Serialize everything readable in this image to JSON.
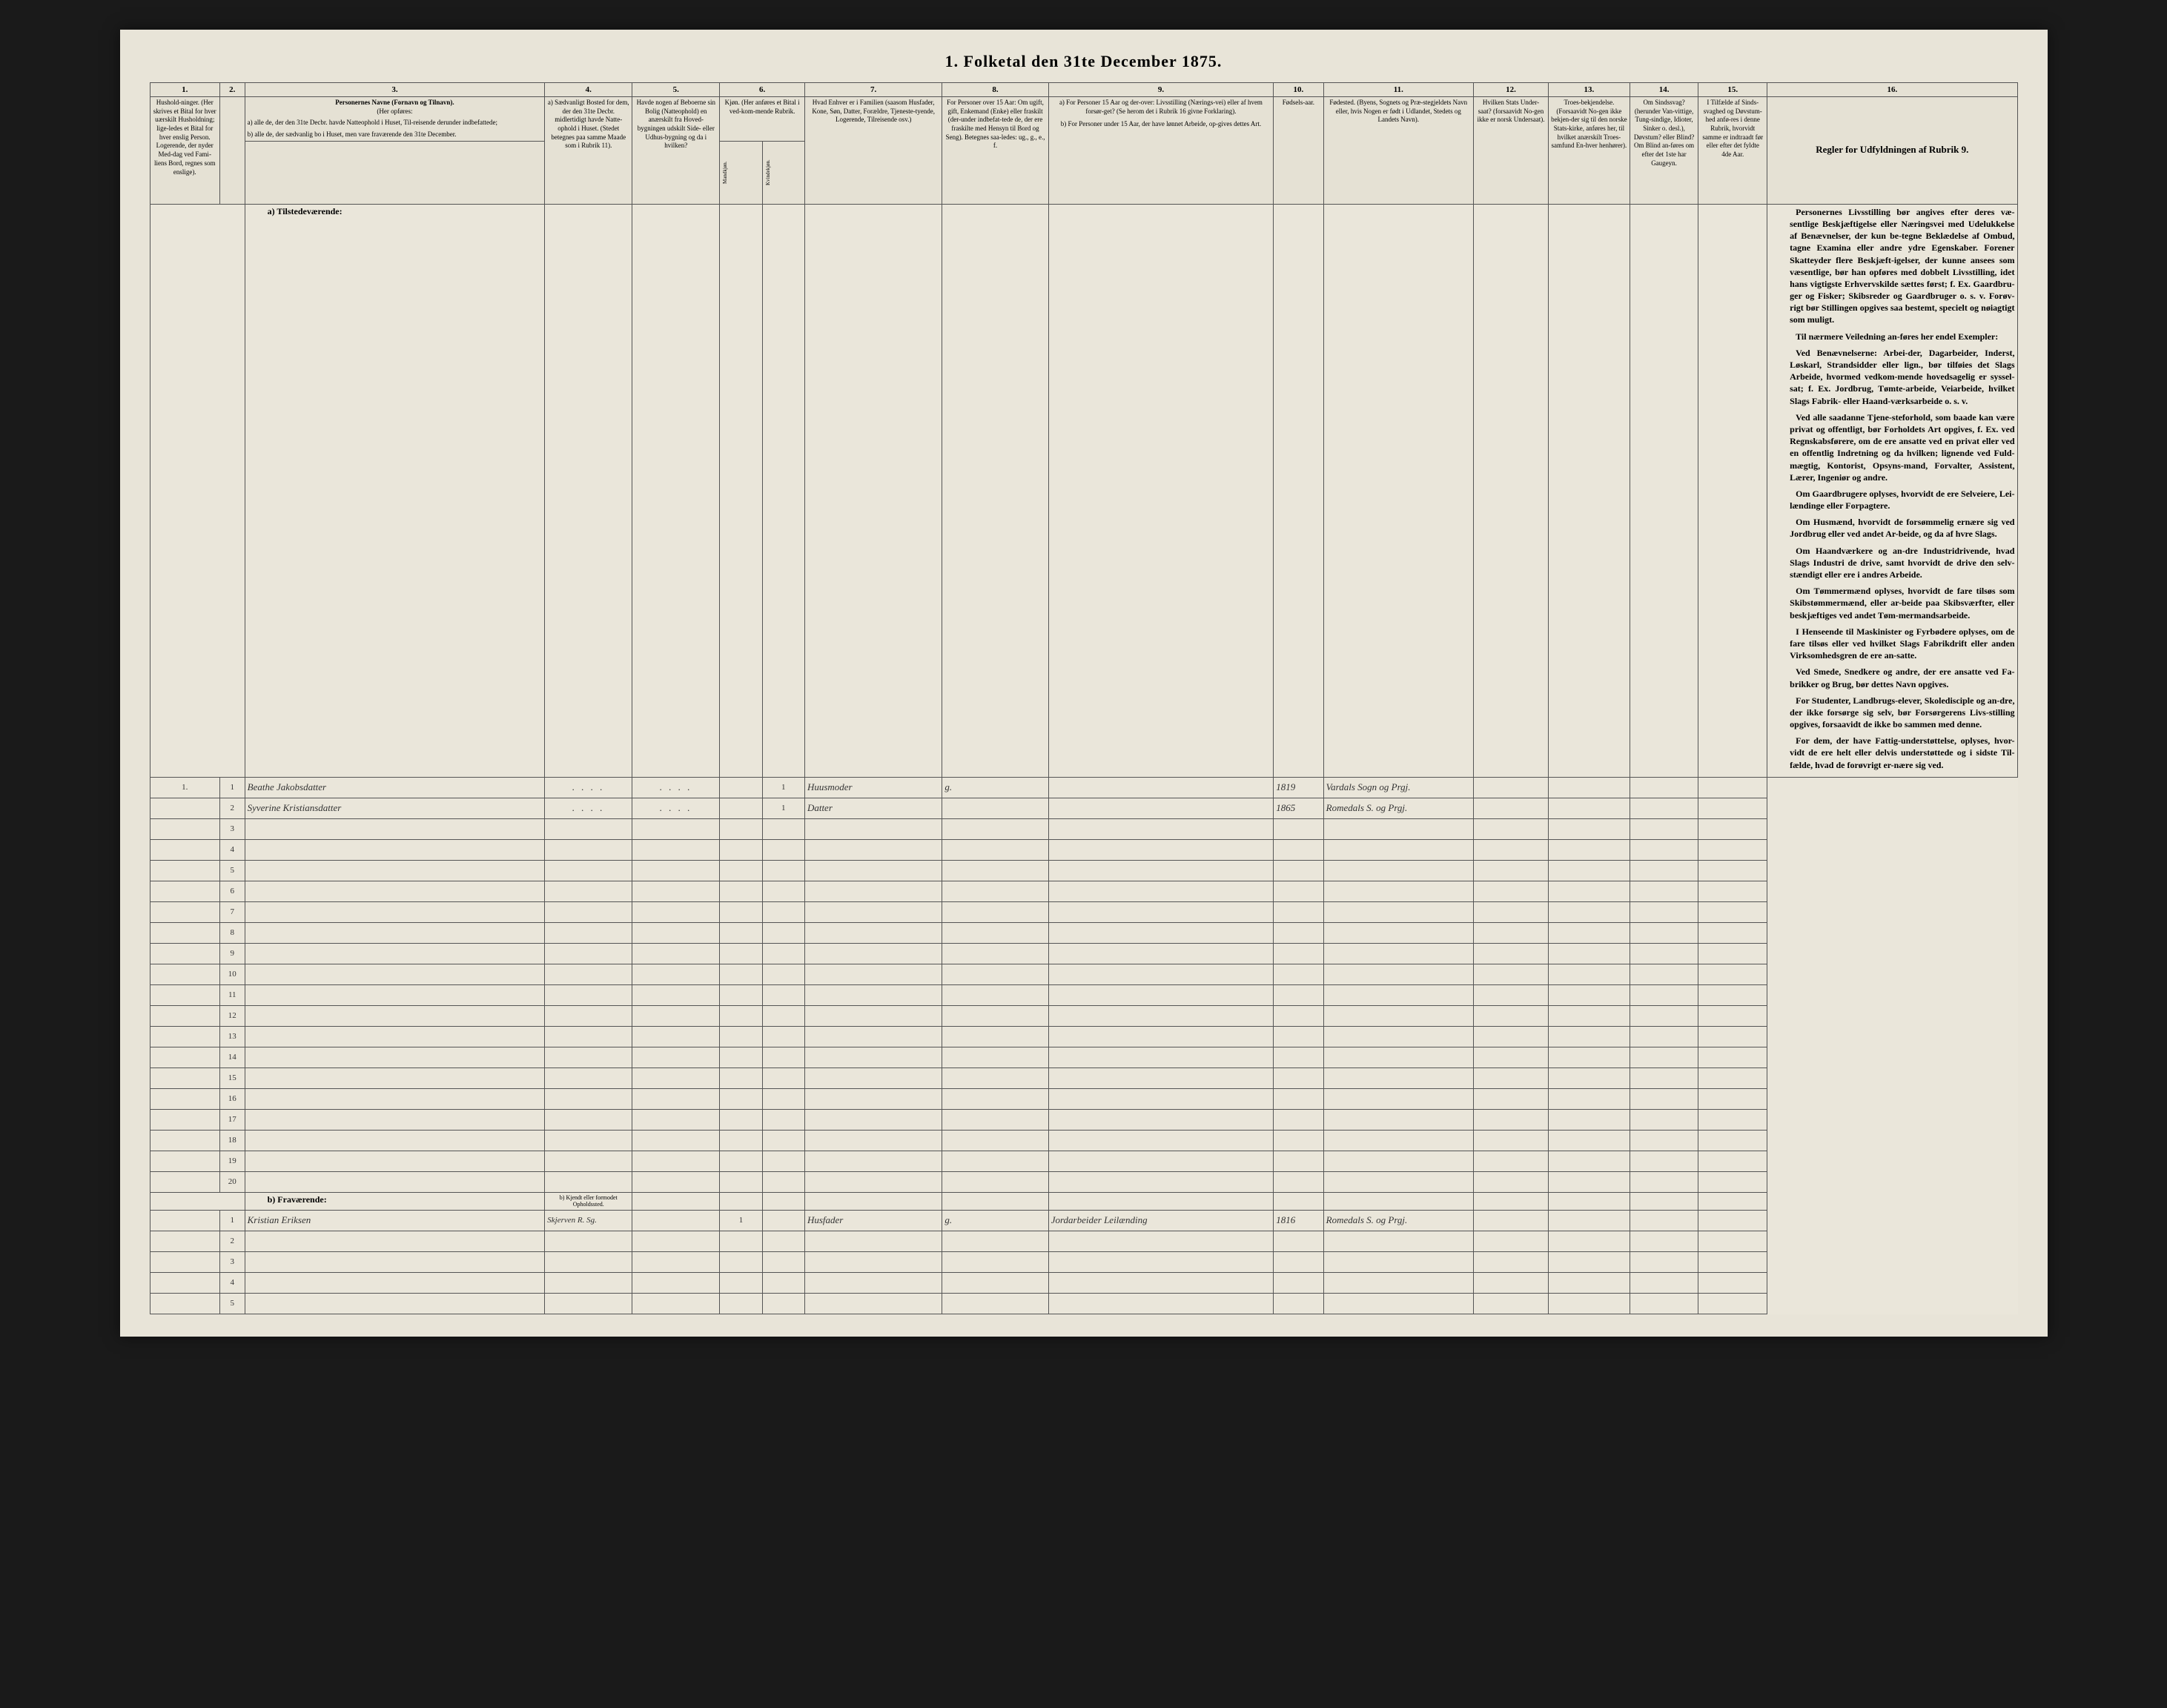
{
  "title": "1. Folketal den 31te December 1875.",
  "columns": {
    "nums": [
      "1.",
      "2.",
      "3.",
      "4.",
      "5.",
      "6.",
      "7.",
      "8.",
      "9.",
      "10.",
      "11.",
      "12.",
      "13.",
      "14.",
      "15.",
      "16."
    ],
    "h1": "Hushold-ninger. (Her skrives et Bital for hver uærskilt Husholdning; lige-ledes et Bital for hver enslig Person. Logerende, der nyder Med-dag ved Fami-liens Bord, regnes som enslige).",
    "h3_title": "Personernes Navne (Fornavn og Tilnavn).",
    "h3_sub": "(Her opføres:",
    "h3_a": "a) alle de, der den 31te Decbr. havde Natteophold i Huset, Til-reisende derunder indbefattede;",
    "h3_b": "b) alle de, der sædvanlig bo i Huset, men vare fraværende den 31te December.",
    "h4": "a) Sædvanligt Bosted for dem, der den 31te Decbr. midlertidigt havde Natte-ophold i Huset. (Stedet betegnes paa samme Maade som i Rubrik 11).",
    "h5": "Havde nogen af Beboerne sin Bolig (Natteophold) en anærskilt fra Hoved-bygningen udskilt Side- eller Udhus-bygning og da i hvilken?",
    "h6": "Kjøn. (Her anføres et Bital i ved-kom-mende Rubrik.",
    "h6a": "Mandkjøn.",
    "h6b": "Kvindekjøn.",
    "h7": "Hvad Enhver er i Familien (saasom Husfader, Kone, Søn, Datter, Forældre, Tjeneste-tyende, Logerende, Tilreisende osv.)",
    "h8": "For Personer over 15 Aar: Om ugift, gift, Enkemand (Enke) eller fraskilt (der-under indbefat-tede de, der ere fraskilte med Hensyn til Bord og Seng). Betegnes saa-ledes: ug., g., e., f.",
    "h9_a": "a) For Personer 15 Aar og der-over: Livsstilling (Nærings-vei) eller af hvem forsør-get? (Se herom det i Rubrik 16 givne Forklaring).",
    "h9_b": "b) For Personer under 15 Aar, der have lønnet Arbeide, op-gives dettes Art.",
    "h10": "Fødsels-aar.",
    "h11": "Fødested. (Byens, Sognets og Præ-stegjeldets Navn eller, hvis Nogen er født i Udlandet, Stedets og Landets Navn).",
    "h12": "Hvilken Stats Under-saat? (forsaavidt No-gen ikke er norsk Undersaat).",
    "h13": "Troes-bekjendelse. (Forsaavidt No-gen ikke bekjen-der sig til den norske Stats-kirke, anføres her, til hvilket anærskilt Troes-samfund En-hver henhører).",
    "h14": "Om Sindssvag? (herunder Van-vittige, Tung-sindige, Idioter, Sinker o. desl.), Døvstum? eller Blind? Om Blind an-føres om efter det 1ste har Gaugeyn.",
    "h15": "I Tilfælde af Sinds-svaghed og Døvstum-hed anfø-res i denne Rubrik, hvorvidt samme er indtraadt før eller efter det fyldte 4de Aar.",
    "h16": "Regler for Udfyldningen af Rubrik 9."
  },
  "section_a": "a) Tilstedeværende:",
  "section_b": "b) Fraværende:",
  "section_b_col4": "b) Kjendt eller formodet Opholdssted.",
  "rows_a": [
    {
      "hnum": "1.",
      "pnum": "1",
      "name": "Beathe Jakobsdatter",
      "c4": ". . . .",
      "c5": ". . . .",
      "sex_f": "1",
      "role": "Huusmoder",
      "status": "g.",
      "year": "1819",
      "place": "Vardals Sogn og Prgj."
    },
    {
      "hnum": "",
      "pnum": "2",
      "name": "Syverine Kristiansdatter",
      "c4": ". . . .",
      "c5": ". . . .",
      "sex_f": "1",
      "role": "Datter",
      "status": "",
      "year": "1865",
      "place": "Romedals S. og Prgj."
    }
  ],
  "empty_a": [
    "3",
    "4",
    "5",
    "6",
    "7",
    "8",
    "9",
    "10",
    "11",
    "12",
    "13",
    "14",
    "15",
    "16",
    "17",
    "18",
    "19",
    "20"
  ],
  "rows_b": [
    {
      "hnum": "",
      "pnum": "1",
      "name": "Kristian Eriksen",
      "c4": "Skjerven R. Sg.",
      "sex_m": "1",
      "role": "Husfader",
      "status": "g.",
      "occ": "Jordarbeider Leilænding",
      "year": "1816",
      "place": "Romedals S. og Prgj."
    }
  ],
  "empty_b": [
    "2",
    "3",
    "4",
    "5"
  ],
  "rules_text": "Personernes Livsstilling bør angives efter deres væ-sentlige Beskjæftigelse eller Næringsvei med Udelukkelse af Benævnelser, der kun be-tegne Beklædelse af Ombud, tagne Examina eller andre ydre Egenskaber. Forener Skatteyder flere Beskjæft-igelser, der kunne ansees som væsentlige, bør han opføres med dobbelt Livsstilling, idet hans vigtigste Erhvervskilde sættes først; f. Ex. Gaardbru-ger og Fisker; Skibsreder og Gaardbruger o. s. v. Forøv-rigt bør Stillingen opgives saa bestemt, specielt og nøiagtigt som muligt.\n\nTil nærmere Veiledning an-føres her endel Exempler:\n\nVed Benævnelserne: Arbei-der, Dagarbeider, Inderst, Løskarl, Strandsidder eller lign., bør tilføies det Slags Arbeide, hvormed vedkom-mende hovedsagelig er syssel-sat; f. Ex. Jordbrug, Tømte-arbeide, Veiarbeide, hvilket Slags Fabrik- eller Haand-værksarbeide o. s. v.\n\nVed alle saadanne Tjene-steforhold, som baade kan være privat og offentligt, bør Forholdets Art opgives, f. Ex. ved Regnskabsførere, om de ere ansatte ved en privat eller ved en offentlig Indretning og da hvilken; lignende ved Fuld-mægtig, Kontorist, Opsyns-mand, Forvalter, Assistent, Lærer, Ingeniør og andre.\n\nOm Gaardbrugere oplyses, hvorvidt de ere Selveiere, Lei-lændinge eller Forpagtere.\n\nOm Husmænd, hvorvidt de forsømmelig ernære sig ved Jordbrug eller ved andet Ar-beide, og da af hvre Slags.\n\nOm Haandværkere og an-dre Industridrivende, hvad Slags Industri de drive, samt hvorvidt de drive den selv-stændigt eller ere i andres Arbeide.\n\nOm Tømmermænd oplyses, hvorvidt de fare tilsøs som Skibstømmermænd, eller ar-beide paa Skibsværfter, eller beskjæftiges ved andet Tøm-mermandsarbeide.\n\nI Henseende til Maskinister og Fyrbødere oplyses, om de fare tilsøs eller ved hvilket Slags Fabrikdrift eller anden Virksomhedsgren de ere an-satte.\n\nVed Smede, Snedkere og andre, der ere ansatte ved Fa-brikker og Brug, bør dettes Navn opgives.\n\nFor Studenter, Landbrugs-elever, Skoledisciple og an-dre, der ikke forsørge sig selv, bør Forsørgerens Livs-stilling opgives, forsaavidt de ikke bo sammen med denne.\n\nFor dem, der have Fattig-understøttelse, oplyses, hvor-vidt de ere helt eller delvis understøttede og i sidste Til-fælde, hvad de forøvrigt er-nære sig ved."
}
